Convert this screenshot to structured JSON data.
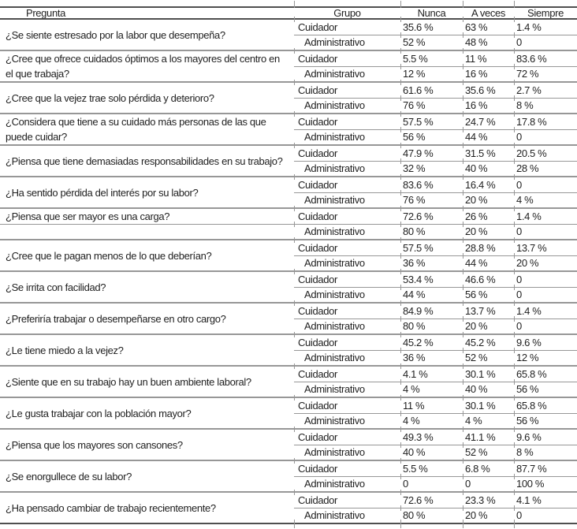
{
  "colors": {
    "text": "#1f1f1f",
    "line_strong": "#4f4f4f",
    "line_light": "#979797"
  },
  "table": {
    "header": {
      "pregunta": "Pregunta",
      "grupo": "Grupo",
      "nunca": "Nunca",
      "a_veces": "A veces",
      "siempre": "Siempre"
    },
    "row_labels": {
      "cuidador": "Cuidador",
      "administrativo": "Administrativo"
    },
    "groups": [
      {
        "question": "¿Se siente estresado por la labor que desempeña?",
        "cuidador": [
          "35.6 %",
          "63 %",
          "1.4 %"
        ],
        "administrativo": [
          "52 %",
          "48 %",
          "0"
        ]
      },
      {
        "question": "¿Cree que ofrece cuidados óptimos a los mayores del centro en\nel que trabaja?",
        "cuidador": [
          "5.5 %",
          "11 %",
          "83.6 %"
        ],
        "administrativo": [
          "12 %",
          "16 %",
          "72 %"
        ]
      },
      {
        "question": "¿Cree que la vejez trae solo pérdida y deterioro?",
        "cuidador": [
          "61.6 %",
          "35.6 %",
          "2.7 %"
        ],
        "administrativo": [
          "76 %",
          "16 %",
          "8 %"
        ]
      },
      {
        "question": "¿Considera que tiene a su cuidado más personas de las que\npuede cuidar?",
        "cuidador": [
          "57.5 %",
          "24.7 %",
          "17.8 %"
        ],
        "administrativo": [
          "56 %",
          "44 %",
          "0"
        ]
      },
      {
        "question": "¿Piensa que tiene demasiadas responsabilidades en su trabajo?",
        "cuidador": [
          "47.9 %",
          "31.5 %",
          "20.5 %"
        ],
        "administrativo": [
          "32 %",
          "40 %",
          "28 %"
        ]
      },
      {
        "question": "¿Ha sentido pérdida del interés por su labor?",
        "cuidador": [
          "83.6 %",
          "16.4 %",
          "0"
        ],
        "administrativo": [
          "76 %",
          "20 %",
          "4 %"
        ]
      },
      {
        "question": "¿Piensa que ser mayor es una carga?",
        "cuidador": [
          "72.6 %",
          "26 %",
          "1.4 %"
        ],
        "administrativo": [
          "80 %",
          "20 %",
          "0"
        ]
      },
      {
        "question": "¿Cree que le pagan menos de lo que deberían?",
        "cuidador": [
          "57.5 %",
          "28.8 %",
          "13.7 %"
        ],
        "administrativo": [
          "36 %",
          "44 %",
          "20 %"
        ]
      },
      {
        "question": "¿Se irrita con facilidad?",
        "cuidador": [
          "53.4 %",
          "46.6 %",
          "0"
        ],
        "administrativo": [
          "44 %",
          "56 %",
          "0"
        ]
      },
      {
        "question": "¿Preferiría trabajar o desempeñarse en otro cargo?",
        "cuidador": [
          "84.9 %",
          "13.7 %",
          "1.4 %"
        ],
        "administrativo": [
          "80 %",
          "20 %",
          "0"
        ]
      },
      {
        "question": "¿Le tiene miedo a la vejez?",
        "cuidador": [
          "45.2 %",
          "45.2 %",
          "9.6 %"
        ],
        "administrativo": [
          "36 %",
          "52 %",
          "12 %"
        ]
      },
      {
        "question": "¿Siente que en su trabajo hay un buen ambiente laboral?",
        "cuidador": [
          "4.1 %",
          "30.1 %",
          "65.8 %"
        ],
        "administrativo": [
          "4 %",
          "40 %",
          "56 %"
        ]
      },
      {
        "question": "¿Le gusta trabajar con la población mayor?",
        "cuidador": [
          "11 %",
          "30.1 %",
          "65.8 %"
        ],
        "administrativo": [
          "4 %",
          "4 %",
          "56 %"
        ]
      },
      {
        "question": "¿Piensa que los mayores son cansones?",
        "cuidador": [
          "49.3 %",
          "41.1 %",
          "9.6 %"
        ],
        "administrativo": [
          "40 %",
          "52 %",
          "8 %"
        ]
      },
      {
        "question": "¿Se enorgullece de su labor?",
        "cuidador": [
          "5.5 %",
          "6.8 %",
          "87.7 %"
        ],
        "administrativo": [
          "0",
          "0",
          "100 %"
        ]
      },
      {
        "question": "¿Ha pensado cambiar de trabajo recientemente?",
        "cuidador": [
          "72.6 %",
          "23.3 %",
          "4.1 %"
        ],
        "administrativo": [
          "80 %",
          "20 %",
          "0"
        ]
      }
    ]
  }
}
